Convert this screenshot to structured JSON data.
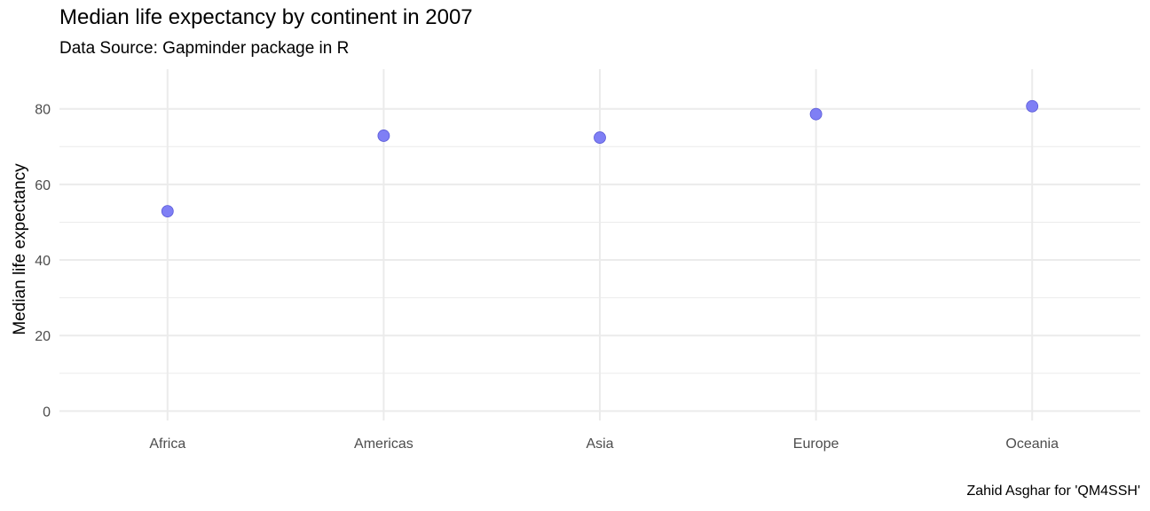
{
  "chart_data": {
    "type": "scatter",
    "title": "Median life expectancy by continent in 2007",
    "subtitle": "Data Source: Gapminder package in R",
    "caption": "Zahid Asghar for 'QM4SSH'",
    "xlabel": "",
    "ylabel": "Median life expectancy",
    "categories": [
      "Africa",
      "Americas",
      "Asia",
      "Europe",
      "Oceania"
    ],
    "values": [
      52.9,
      72.9,
      72.4,
      78.6,
      80.7
    ],
    "ylim": [
      -2.5,
      90.5
    ],
    "yticks": [
      0,
      20,
      40,
      60,
      80
    ],
    "grid": true,
    "legend": "none",
    "point_color": "#7f7ff5",
    "point_stroke": "#5a5ad8",
    "grid_color": "#ebebeb"
  }
}
